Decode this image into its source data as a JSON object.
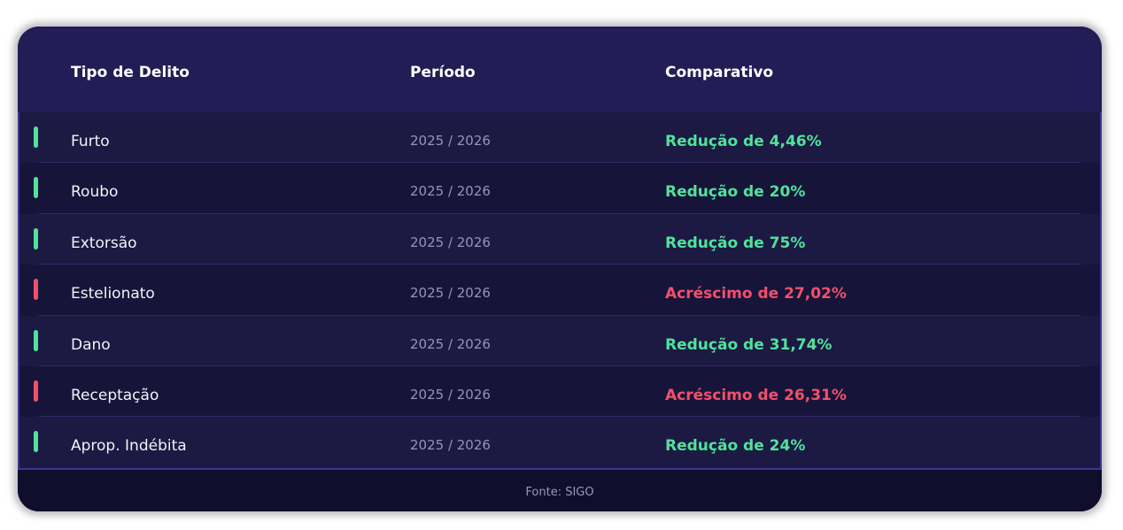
{
  "table": {
    "headers": {
      "type": "Tipo de Delito",
      "period": "Período",
      "comparison": "Comparativo"
    },
    "rows": [
      {
        "type": "Furto",
        "period": "2025 / 2026",
        "comparison": "Redução de 4,46%",
        "trend": "reduction"
      },
      {
        "type": "Roubo",
        "period": "2025 / 2026",
        "comparison": "Redução de 20%",
        "trend": "reduction"
      },
      {
        "type": "Extorsão",
        "period": "2025 / 2026",
        "comparison": "Redução de 75%",
        "trend": "reduction"
      },
      {
        "type": "Estelionato",
        "period": "2025 / 2026",
        "comparison": "Acréscimo de 27,02%",
        "trend": "increase"
      },
      {
        "type": "Dano",
        "period": "2025 / 2026",
        "comparison": "Redução de 31,74%",
        "trend": "reduction"
      },
      {
        "type": "Receptação",
        "period": "2025 / 2026",
        "comparison": "Acréscimo de 26,31%",
        "trend": "increase"
      },
      {
        "type": "Aprop. Indébita",
        "period": "2025 / 2026",
        "comparison": "Redução de 24%",
        "trend": "reduction"
      }
    ],
    "footer": "Fonte: SIGO"
  },
  "colors": {
    "reduction": "#4fe39b",
    "increase": "#f2506a"
  }
}
